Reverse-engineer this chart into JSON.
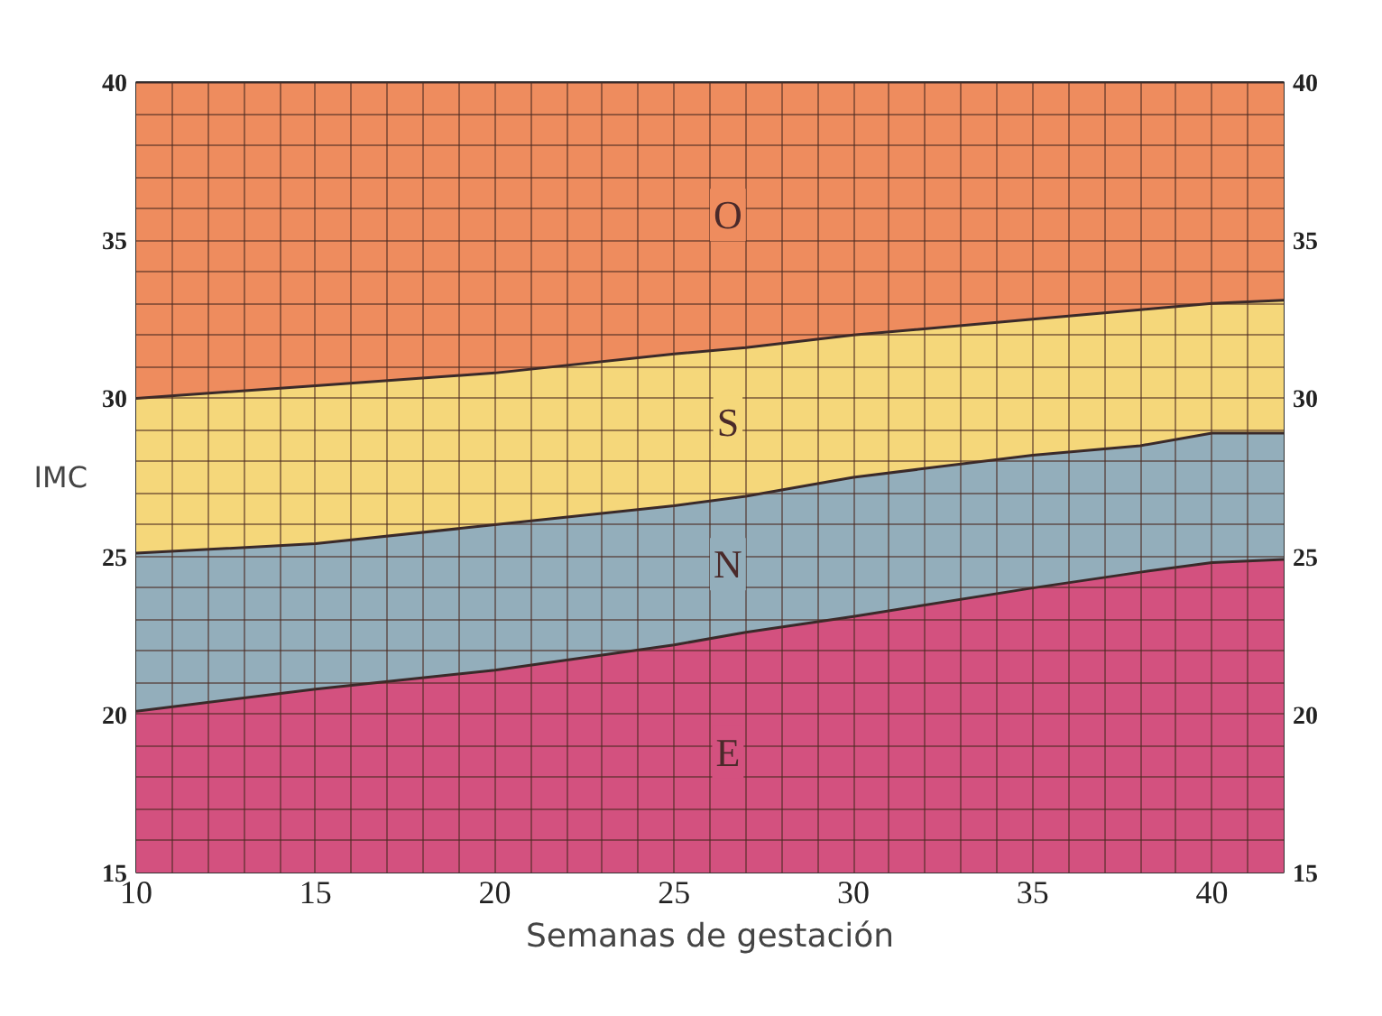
{
  "chart_data": {
    "type": "area",
    "xlabel": "Semanas de gestación",
    "ylabel": "IMC",
    "x": [
      10,
      15,
      20,
      25,
      27,
      30,
      35,
      38,
      40,
      42
    ],
    "series": [
      {
        "name": "O",
        "color": "#ee8c5e",
        "values": [
          40,
          40,
          40,
          40,
          40,
          40,
          40,
          40,
          40,
          40
        ]
      },
      {
        "name": "S",
        "color": "#f5d77a",
        "values": [
          30.0,
          30.4,
          30.8,
          31.4,
          31.6,
          32.0,
          32.5,
          32.8,
          33.0,
          33.1
        ]
      },
      {
        "name": "N",
        "color": "#93aebb",
        "values": [
          25.1,
          25.4,
          26.0,
          26.6,
          26.9,
          27.5,
          28.2,
          28.5,
          28.9,
          28.9
        ]
      },
      {
        "name": "E",
        "color": "#d3517f",
        "values": [
          20.1,
          20.8,
          21.4,
          22.2,
          22.6,
          23.1,
          24.0,
          24.5,
          24.8,
          24.9
        ]
      }
    ],
    "xlim": [
      10,
      42
    ],
    "ylim": [
      15,
      40
    ],
    "y2lim": [
      15,
      40
    ],
    "xticks": [
      10,
      {
        "value": 11,
        "label": null
      },
      {
        "value": 12,
        "label": null
      },
      {
        "value": 13,
        "label": null
      },
      {
        "value": 14,
        "label": null
      },
      15,
      {
        "value": 16,
        "label": null
      },
      {
        "value": 17,
        "label": null
      },
      {
        "value": 18,
        "label": null
      },
      {
        "value": 19,
        "label": null
      },
      20,
      {
        "value": 21,
        "label": null
      },
      {
        "value": 22,
        "label": null
      },
      {
        "value": 23,
        "label": null
      },
      {
        "value": 24,
        "label": null
      },
      25,
      {
        "value": 26,
        "label": null
      },
      {
        "value": 27,
        "label": null
      },
      {
        "value": 28,
        "label": null
      },
      {
        "value": 29,
        "label": null
      },
      30,
      {
        "value": 31,
        "label": null
      },
      {
        "value": 32,
        "label": null
      },
      {
        "value": 33,
        "label": null
      },
      {
        "value": 34,
        "label": null
      },
      35,
      {
        "value": 36,
        "label": null
      },
      {
        "value": 37,
        "label": null
      },
      {
        "value": 38,
        "label": null
      },
      {
        "value": 39,
        "label": null
      },
      40,
      {
        "value": 41,
        "label": null
      },
      {
        "value": 42,
        "label": null
      }
    ],
    "yticks": [
      15,
      {
        "value": 16,
        "label": null
      },
      {
        "value": 17,
        "label": null
      },
      {
        "value": 18,
        "label": null
      },
      {
        "value": 19,
        "label": null
      },
      20,
      {
        "value": 21,
        "label": null
      },
      {
        "value": 22,
        "label": null
      },
      {
        "value": 23,
        "label": null
      },
      {
        "value": 24,
        "label": null
      },
      25,
      {
        "value": 26,
        "label": null
      },
      {
        "value": 27,
        "label": null
      },
      {
        "value": 28,
        "label": null
      },
      {
        "value": 29,
        "label": null
      },
      30,
      {
        "value": 31,
        "label": null
      },
      {
        "value": 32,
        "label": null
      },
      {
        "value": 33,
        "label": null
      },
      {
        "value": 34,
        "label": null
      },
      35,
      {
        "value": 36,
        "label": null
      },
      {
        "value": 37,
        "label": null
      },
      {
        "value": 38,
        "label": null
      },
      {
        "value": 39,
        "label": null
      },
      40
    ],
    "y2ticks": [
      15,
      20,
      25,
      30,
      35,
      40
    ],
    "grid": true
  }
}
